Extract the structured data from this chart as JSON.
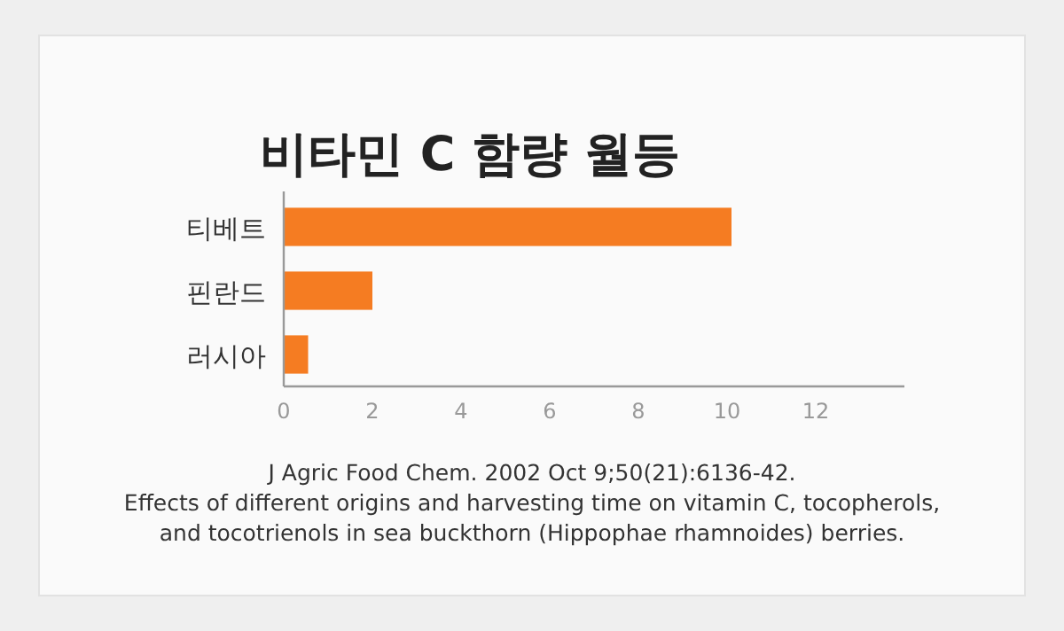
{
  "chart_data": {
    "type": "bar",
    "orientation": "horizontal",
    "title": "비타민 C 함량 월등",
    "categories": [
      "티베트",
      "핀란드",
      "러시아"
    ],
    "values": [
      10.1,
      2.0,
      0.55
    ],
    "color": "#f57c22",
    "xlim": [
      0,
      14
    ],
    "xticks": [
      0,
      2,
      4,
      6,
      8,
      10,
      12
    ],
    "annotations": [
      "J Agric Food Chem. 2002 Oct 9;50(21):6136-42.",
      "Effects of different origins and harvesting time on vitamin C, tocopherols,",
      "and tocotrienols in sea buckthorn (Hippophae rhamnoides) berries."
    ]
  }
}
